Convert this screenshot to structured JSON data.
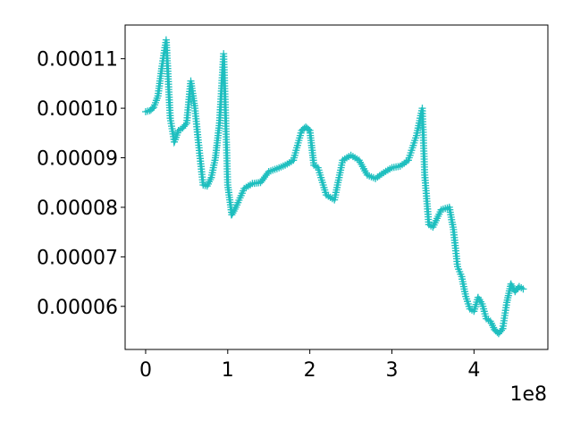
{
  "chart_data": {
    "type": "line",
    "title": "",
    "xlabel": "",
    "ylabel": "",
    "x_offset_text": "1e8",
    "xlim": [
      -0.25,
      4.9
    ],
    "ylim": [
      5.13e-05,
      0.0001168
    ],
    "x_ticks": [
      0,
      1,
      2,
      3,
      4
    ],
    "x_tick_labels": [
      "0",
      "1",
      "2",
      "3",
      "4"
    ],
    "y_ticks": [
      6e-05,
      7e-05,
      8e-05,
      9e-05,
      0.0001,
      0.00011
    ],
    "y_tick_labels": [
      "0.00006",
      "0.00007",
      "0.00008",
      "0.00009",
      "0.00010",
      "0.00011"
    ],
    "grid": false,
    "legend": "none",
    "series": [
      {
        "color": "#1fbfbf",
        "marker": "+",
        "x": [
          0.0,
          0.05,
          0.1,
          0.15,
          0.2,
          0.25,
          0.3,
          0.35,
          0.4,
          0.45,
          0.5,
          0.55,
          0.6,
          0.65,
          0.7,
          0.75,
          0.8,
          0.85,
          0.9,
          0.95,
          1.0,
          1.05,
          1.1,
          1.2,
          1.3,
          1.4,
          1.5,
          1.6,
          1.7,
          1.8,
          1.9,
          1.95,
          2.0,
          2.05,
          2.1,
          2.2,
          2.3,
          2.4,
          2.5,
          2.6,
          2.7,
          2.8,
          2.9,
          3.0,
          3.1,
          3.2,
          3.3,
          3.37,
          3.4,
          3.45,
          3.5,
          3.6,
          3.7,
          3.75,
          3.8,
          3.85,
          3.9,
          3.95,
          4.0,
          4.05,
          4.1,
          4.15,
          4.2,
          4.25,
          4.3,
          4.35,
          4.4,
          4.45,
          4.5,
          4.55,
          4.6
        ],
        "y": [
          9.93e-05,
          9.95e-05,
          0.0001002,
          0.0001025,
          0.0001085,
          0.0001138,
          9.8e-05,
          9.32e-05,
          9.55e-05,
          9.6e-05,
          9.7e-05,
          0.0001055,
          0.0001,
          9.2e-05,
          8.45e-05,
          8.43e-05,
          8.6e-05,
          9e-05,
          9.7e-05,
          0.000111,
          8.45e-05,
          7.85e-05,
          8e-05,
          8.38e-05,
          8.48e-05,
          8.5e-05,
          8.72e-05,
          8.78e-05,
          8.85e-05,
          8.95e-05,
          9.55e-05,
          9.62e-05,
          9.55e-05,
          8.85e-05,
          8.8e-05,
          8.25e-05,
          8.15e-05,
          8.95e-05,
          9.05e-05,
          8.95e-05,
          8.65e-05,
          8.58e-05,
          8.7e-05,
          8.8e-05,
          8.83e-05,
          8.95e-05,
          9.45e-05,
          0.0001,
          8.65e-05,
          7.65e-05,
          7.6e-05,
          7.95e-05,
          8e-05,
          7.55e-05,
          6.8e-05,
          6.6e-05,
          6.2e-05,
          5.95e-05,
          5.9e-05,
          6.18e-05,
          6.05e-05,
          5.75e-05,
          5.7e-05,
          5.53e-05,
          5.45e-05,
          5.55e-05,
          6.08e-05,
          6.45e-05,
          6.3e-05,
          6.4e-05,
          6.35e-05
        ]
      }
    ]
  }
}
